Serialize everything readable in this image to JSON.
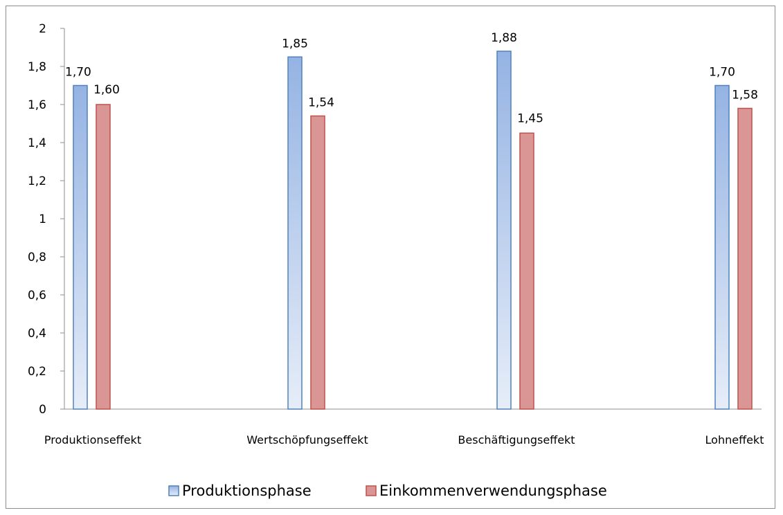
{
  "chart_data": {
    "type": "bar",
    "categories": [
      "Produktionseffekt",
      "Wertschöpfungseffekt",
      "Beschäftigungseffekt",
      "Lohneffekt"
    ],
    "series": [
      {
        "name": "Produktionsphase",
        "values": [
          1.7,
          1.85,
          1.88,
          1.7
        ],
        "labels": [
          "1,70",
          "1,85",
          "1,88",
          "1,70"
        ],
        "color": "#4f81bd"
      },
      {
        "name": "Einkommenverwendungsphase",
        "values": [
          1.6,
          1.54,
          1.45,
          1.58
        ],
        "labels": [
          "1,60",
          "1,54",
          "1,45",
          "1,58"
        ],
        "color": "#c0504d"
      }
    ],
    "yticks": [
      "0",
      "0,2",
      "0,4",
      "0,6",
      "0,8",
      "1",
      "1,2",
      "1,4",
      "1,6",
      "1,8",
      "2"
    ],
    "ylim": [
      0,
      2
    ],
    "grid": false,
    "legend_position": "bottom",
    "title": "",
    "xlabel": "",
    "ylabel": ""
  }
}
